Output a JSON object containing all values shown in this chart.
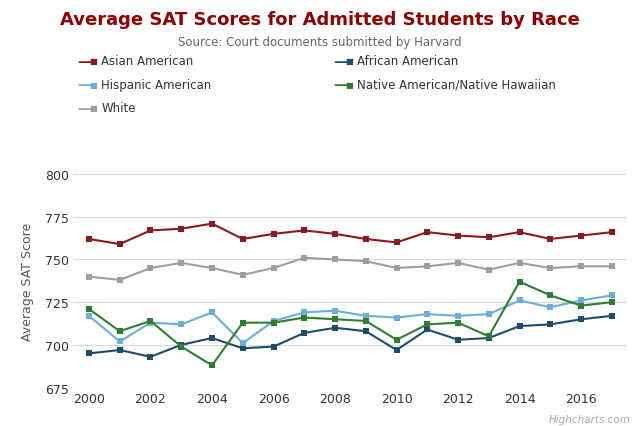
{
  "title": "Average SAT Scores for Admitted Students by Race",
  "subtitle": "Source: Court documents submitted by Harvard",
  "ylabel": "Average SAT Score",
  "watermark": "Highcharts.com",
  "title_color": "#8B0000",
  "background_color": "#FFFFFF",
  "years": [
    2000,
    2001,
    2002,
    2003,
    2004,
    2005,
    2006,
    2007,
    2008,
    2009,
    2010,
    2011,
    2012,
    2013,
    2014,
    2015,
    2016,
    2017
  ],
  "ylim": [
    675,
    800
  ],
  "yticks": [
    675,
    700,
    725,
    750,
    775,
    800
  ],
  "series": [
    {
      "name": "Asian American",
      "color": "#8B1A1A",
      "marker": "s",
      "data": [
        762,
        759,
        767,
        768,
        771,
        762,
        765,
        767,
        765,
        762,
        760,
        766,
        764,
        763,
        766,
        762,
        764,
        766
      ]
    },
    {
      "name": "African American",
      "color": "#1C4E6B",
      "marker": "s",
      "data": [
        695,
        697,
        693,
        700,
        704,
        698,
        699,
        707,
        710,
        708,
        697,
        709,
        703,
        704,
        711,
        712,
        715,
        717
      ]
    },
    {
      "name": "Hispanic American",
      "color": "#6BAED6",
      "marker": "s",
      "data": [
        717,
        702,
        713,
        712,
        719,
        701,
        714,
        719,
        720,
        717,
        716,
        718,
        717,
        718,
        726,
        722,
        726,
        729
      ]
    },
    {
      "name": "Native American/Native Hawaiian",
      "color": "#2E7D32",
      "marker": "s",
      "data": [
        721,
        708,
        714,
        699,
        688,
        713,
        713,
        716,
        715,
        714,
        703,
        712,
        713,
        705,
        737,
        729,
        723,
        725
      ]
    },
    {
      "name": "White",
      "color": "#9E9E9E",
      "marker": "s",
      "data": [
        740,
        738,
        745,
        748,
        745,
        741,
        745,
        751,
        750,
        749,
        745,
        746,
        748,
        744,
        748,
        745,
        746,
        746
      ]
    }
  ],
  "legend_order": [
    0,
    1,
    2,
    3,
    4
  ]
}
